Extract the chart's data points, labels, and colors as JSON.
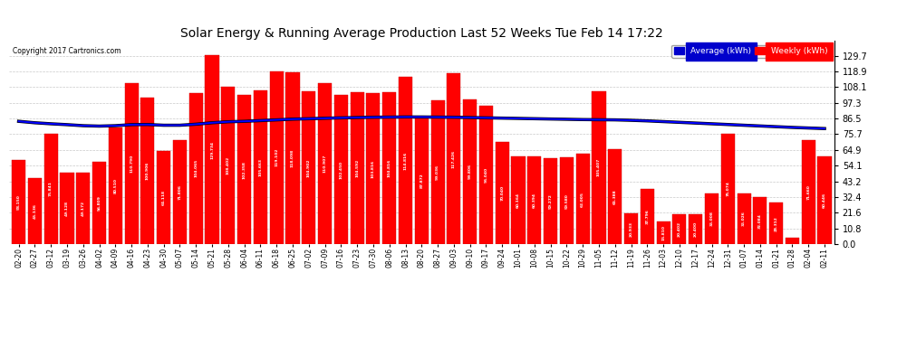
{
  "title": "Solar Energy & Running Average Production Last 52 Weeks Tue Feb 14 17:22",
  "copyright": "Copyright 2017 Cartronics.com",
  "ylabel_right_values": [
    129.7,
    118.9,
    108.1,
    97.3,
    86.5,
    75.7,
    64.9,
    54.1,
    43.2,
    32.4,
    21.6,
    10.8,
    0.0
  ],
  "bar_color": "#ff0000",
  "avg_line_color": "#0000ff",
  "black_line_color": "#000000",
  "background_color": "#ffffff",
  "grid_color": "#bbbbbb",
  "labels": [
    "02-20",
    "02-27",
    "03-12",
    "03-19",
    "03-26",
    "04-02",
    "04-09",
    "04-16",
    "04-23",
    "04-30",
    "05-07",
    "05-14",
    "05-21",
    "05-28",
    "06-04",
    "06-11",
    "06-18",
    "06-25",
    "07-02",
    "07-09",
    "07-16",
    "07-23",
    "07-30",
    "08-06",
    "08-13",
    "08-20",
    "08-27",
    "09-03",
    "09-10",
    "09-17",
    "09-24",
    "10-01",
    "10-08",
    "10-15",
    "10-22",
    "10-29",
    "11-05",
    "11-12",
    "11-19",
    "11-26",
    "12-03",
    "12-10",
    "12-17",
    "12-24",
    "12-31",
    "01-07",
    "01-14",
    "01-21",
    "01-28",
    "02-04",
    "02-11"
  ],
  "weekly_values": [
    58.15,
    45.136,
    75.841,
    49.128,
    49.172,
    56.809,
    80.51,
    110.79,
    100.906,
    64.118,
    71.806,
    104.065,
    129.734,
    108.402,
    102.358,
    105.663,
    119.102,
    118.098,
    104.902,
    110.907,
    102.45,
    104.592,
    103.816,
    104.816,
    114.816,
    87.872,
    99.036,
    117.426,
    99.806,
    95.04,
    70.04,
    60.164,
    60.394,
    59.272,
    59.58,
    62.005,
    105.407,
    65.388,
    20.933,
    37.796,
    15.81,
    20.402,
    20.4,
    35.008,
    76.074,
    35.026,
    32.084,
    28.312,
    4.312,
    71.66,
    60.446
  ],
  "avg_line": [
    84.5,
    83.5,
    82.8,
    82.2,
    81.5,
    81.2,
    81.5,
    82.2,
    82.3,
    81.8,
    81.8,
    82.5,
    83.5,
    84.2,
    84.5,
    85.0,
    85.5,
    86.0,
    86.3,
    86.6,
    86.9,
    87.1,
    87.3,
    87.4,
    87.5,
    87.5,
    87.4,
    87.3,
    87.1,
    86.9,
    86.7,
    86.5,
    86.3,
    86.1,
    85.9,
    85.7,
    85.6,
    85.5,
    85.2,
    84.8,
    84.3,
    83.8,
    83.3,
    82.8,
    82.3,
    81.8,
    81.3,
    80.8,
    80.3,
    79.9,
    79.5
  ],
  "ylim": [
    0,
    140
  ],
  "bar_width": 0.85
}
